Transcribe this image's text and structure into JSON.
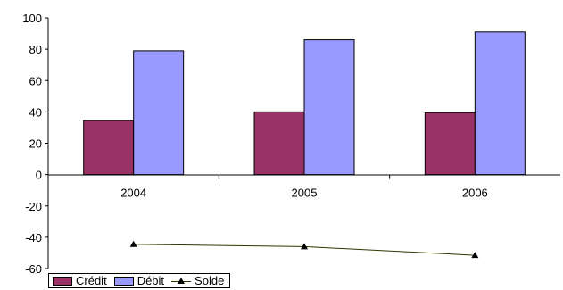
{
  "chart_data": {
    "type": "bar",
    "categories": [
      "2004",
      "2005",
      "2006"
    ],
    "series": [
      {
        "name": "Crédit",
        "kind": "bar",
        "color": "#993366",
        "values": [
          34.5,
          40,
          39.5
        ]
      },
      {
        "name": "Débit",
        "kind": "bar",
        "color": "#9999ff",
        "values": [
          79,
          86,
          91
        ]
      },
      {
        "name": "Solde",
        "kind": "line",
        "color": "#333300",
        "marker": "triangle",
        "values": [
          -44.5,
          -46,
          -51.5
        ]
      }
    ],
    "yticks": [
      "100",
      "80",
      "60",
      "40",
      "20",
      "0",
      "-20",
      "-40",
      "-60"
    ],
    "ylim": [
      -60,
      100
    ],
    "grid": false,
    "legend_position": "bottom-left"
  }
}
